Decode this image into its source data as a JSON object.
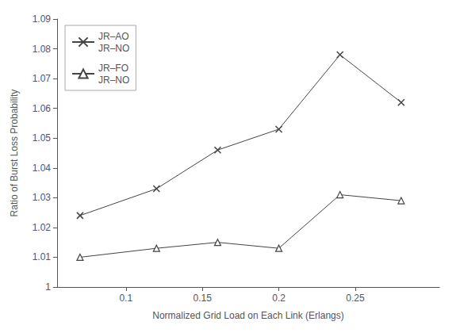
{
  "chart_data": {
    "type": "line",
    "xlabel": "Normalized Grid Load on Each Link (Erlangs)",
    "ylabel": "Ratio of Burst Loss Probability",
    "x": [
      0.07,
      0.12,
      0.16,
      0.2,
      0.24,
      0.28
    ],
    "series": [
      {
        "name": "JR–AO\nJR–NO",
        "color": "#444444",
        "marker": "x",
        "values": [
          1.024,
          1.033,
          1.046,
          1.053,
          1.078,
          1.062
        ]
      },
      {
        "name": "JR–FO\nJR–NO",
        "color": "#444444",
        "marker": "triangle",
        "values": [
          1.01,
          1.013,
          1.015,
          1.013,
          1.031,
          1.029
        ]
      }
    ],
    "xlim": [
      0.055,
      0.305
    ],
    "ylim": [
      1.0,
      1.09
    ],
    "xticks": [
      0.1,
      0.15,
      0.2,
      0.25
    ],
    "yticks": [
      1.0,
      1.01,
      1.02,
      1.03,
      1.04,
      1.05,
      1.06,
      1.07,
      1.08,
      1.09
    ],
    "grid": false,
    "legend": "upper left"
  }
}
